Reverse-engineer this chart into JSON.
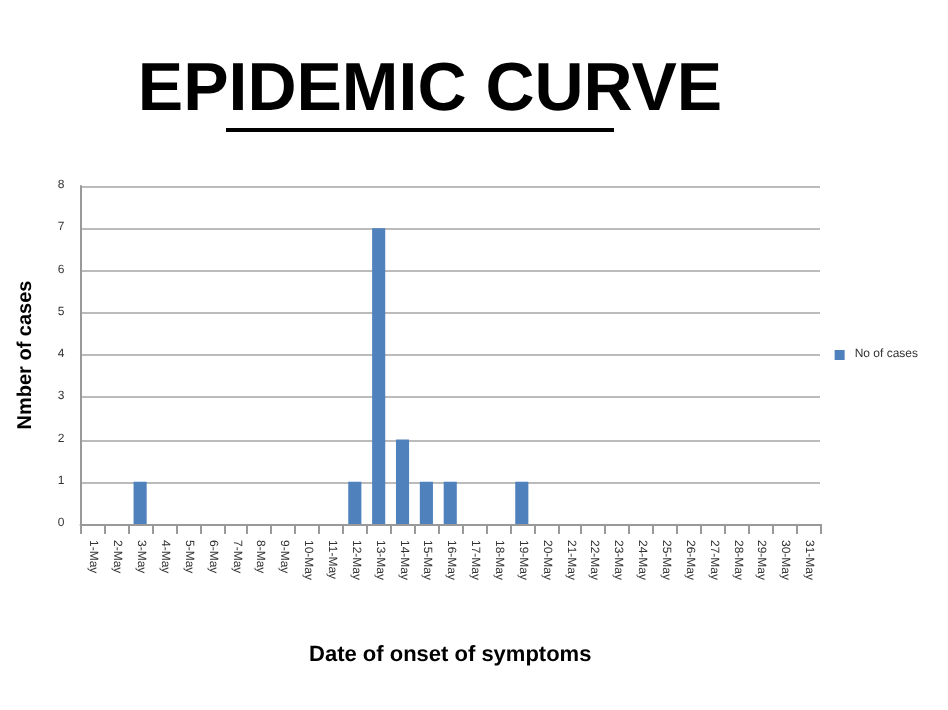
{
  "chart_data": {
    "type": "bar",
    "title": "EPIDEMIC CURVE",
    "xlabel": "Date of onset of symptoms",
    "ylabel": "Nmber of cases",
    "categories": [
      "1-May",
      "2-May",
      "3-May",
      "4-May",
      "5-May",
      "6-May",
      "7-May",
      "8-May",
      "9-May",
      "10-May",
      "11-May",
      "12-May",
      "13-May",
      "14-May",
      "15-May",
      "16-May",
      "17-May",
      "18-May",
      "19-May",
      "20-May",
      "21-May",
      "22-May",
      "23-May",
      "24-May",
      "25-May",
      "26-May",
      "27-May",
      "28-May",
      "29-May",
      "30-May",
      "31-May"
    ],
    "series": [
      {
        "name": "No of cases",
        "color": "#4f81bd",
        "values": [
          0,
          0,
          1,
          0,
          0,
          0,
          0,
          0,
          0,
          0,
          0,
          1,
          7,
          2,
          1,
          1,
          0,
          0,
          1,
          0,
          0,
          0,
          0,
          0,
          0,
          0,
          0,
          0,
          0,
          0,
          0
        ]
      }
    ],
    "ylim": [
      0,
      8
    ],
    "yticks": [
      0,
      1,
      2,
      3,
      4,
      5,
      6,
      7,
      8
    ],
    "grid": "y",
    "legend": "right"
  }
}
